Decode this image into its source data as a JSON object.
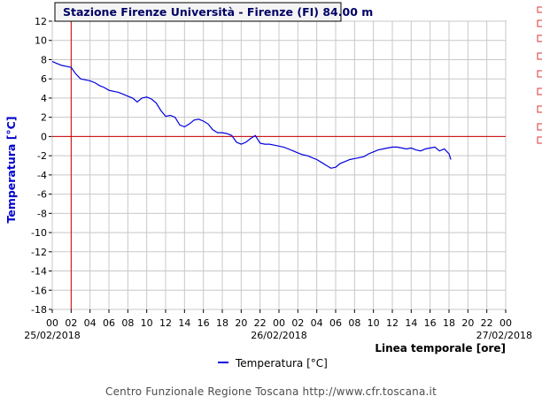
{
  "chart_data": {
    "type": "line",
    "title": "Stazione Firenze Università - Firenze (FI) 84.00 m",
    "ylabel": "Temperatura [°C]",
    "xlabel": "Linea temporale [ore]",
    "ylim": [
      -18,
      12
    ],
    "yticks": [
      "12",
      "10",
      "8",
      "6",
      "4",
      "2",
      "0",
      "-2",
      "-4",
      "-6",
      "-8",
      "-10",
      "-12",
      "-14",
      "-16",
      "-18"
    ],
    "xticks": [
      "00",
      "02",
      "04",
      "06",
      "08",
      "10",
      "12",
      "14",
      "16",
      "18",
      "20",
      "22",
      "00",
      "02",
      "04",
      "06",
      "08",
      "10",
      "12",
      "14",
      "16",
      "18",
      "20",
      "22",
      "00"
    ],
    "dates": [
      "25/02/2018",
      "26/02/2018",
      "27/02/2018"
    ],
    "xlim_hours": [
      0,
      48
    ],
    "grid": true,
    "reference_lines": {
      "y": 0,
      "x_hour": 2
    },
    "legend": "bottom",
    "series": [
      {
        "name": "Temperatura [°C]",
        "color": "#0000dd",
        "x": [
          0,
          0.5,
          1,
          1.5,
          2,
          2.5,
          3,
          3.5,
          4,
          4.5,
          5,
          5.5,
          6,
          6.5,
          7,
          7.5,
          8,
          8.5,
          9,
          9.5,
          10,
          10.5,
          11,
          11.5,
          12,
          12.5,
          13,
          13.5,
          14,
          14.5,
          15,
          15.5,
          16,
          16.5,
          17,
          17.5,
          18,
          18.5,
          19,
          19.5,
          20,
          20.5,
          21,
          21.5,
          22,
          22.5,
          23,
          23.5,
          24,
          24.5,
          25,
          25.5,
          26,
          26.5,
          27,
          27.5,
          28,
          28.5,
          29,
          29.5,
          30,
          30.5,
          31,
          31.5,
          32,
          32.5,
          33,
          33.5,
          34,
          34.5,
          35,
          35.5,
          36,
          36.5,
          37,
          37.5,
          38,
          38.5,
          39,
          39.5,
          40,
          40.5,
          41,
          41.5,
          42,
          42.2
        ],
        "y": [
          7.8,
          7.6,
          7.4,
          7.3,
          7.2,
          6.5,
          6.0,
          5.9,
          5.8,
          5.6,
          5.3,
          5.1,
          4.8,
          4.7,
          4.6,
          4.4,
          4.2,
          4.0,
          3.6,
          4.0,
          4.1,
          3.9,
          3.5,
          2.7,
          2.1,
          2.2,
          2.0,
          1.2,
          1.0,
          1.3,
          1.7,
          1.8,
          1.6,
          1.3,
          0.7,
          0.4,
          0.4,
          0.3,
          0.1,
          -0.6,
          -0.8,
          -0.6,
          -0.2,
          0.1,
          -0.7,
          -0.8,
          -0.8,
          -0.9,
          -1.0,
          -1.1,
          -1.3,
          -1.5,
          -1.7,
          -1.9,
          -2.0,
          -2.2,
          -2.4,
          -2.7,
          -3.0,
          -3.3,
          -3.2,
          -2.8,
          -2.6,
          -2.4,
          -2.3,
          -2.2,
          -2.1,
          -1.8,
          -1.6,
          -1.4,
          -1.3,
          -1.2,
          -1.1,
          -1.1,
          -1.2,
          -1.3,
          -1.2,
          -1.4,
          -1.5,
          -1.3,
          -1.2,
          -1.1,
          -1.5,
          -1.3,
          -1.8,
          -2.4
        ]
      }
    ]
  },
  "footer": "Centro Funzionale Regione Toscana http://www.cfr.toscana.it"
}
